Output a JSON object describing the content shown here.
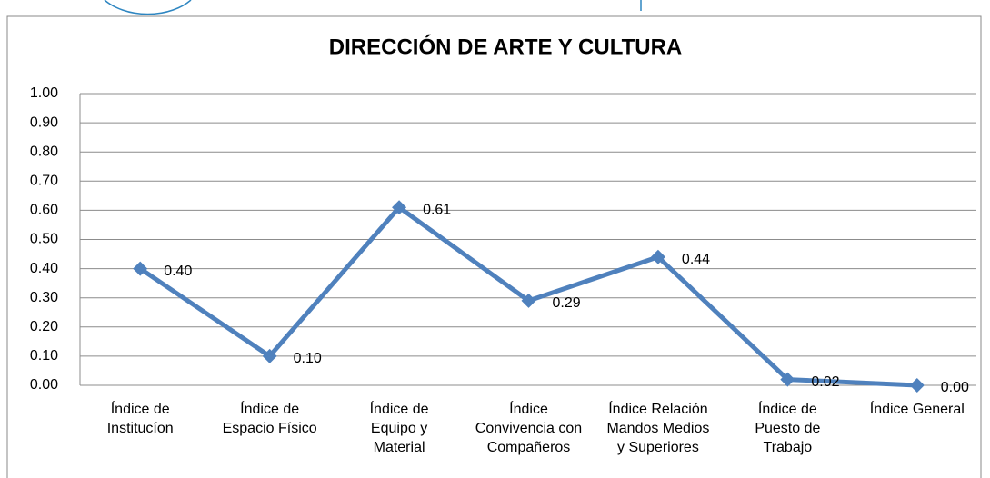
{
  "chart_data": {
    "type": "line",
    "title": "DIRECCIÓN DE ARTE Y CULTURA",
    "categories": [
      "Índice de\nInstitucíon",
      "Índice de\nEspacio Físico",
      "Índice de\nEquipo y\nMaterial",
      "Índice\nConvivencia con\nCompañeros",
      "Índice Relación\nMandos Medios\ny Superiores",
      "Índice de\nPuesto  de\nTrabajo",
      "Índice General"
    ],
    "values": [
      0.4,
      0.1,
      0.61,
      0.29,
      0.44,
      0.02,
      0.0
    ],
    "value_labels": [
      "0.40",
      "0.10",
      "0.61",
      "0.29",
      "0.44",
      "0.02",
      "0.00"
    ],
    "color": "#4f81bd",
    "ylim": [
      0,
      1
    ],
    "yticks": [
      {
        "value": 0,
        "label": "0.00"
      },
      {
        "value": 0.1,
        "label": "0.10"
      },
      {
        "value": 0.2,
        "label": "0.20"
      },
      {
        "value": 0.3,
        "label": "0.30"
      },
      {
        "value": 0.4,
        "label": "0.40"
      },
      {
        "value": 0.5,
        "label": "0.50"
      },
      {
        "value": 0.6,
        "label": "0.60"
      },
      {
        "value": 0.7,
        "label": "0.70"
      },
      {
        "value": 0.8,
        "label": "0.80"
      },
      {
        "value": 0.9,
        "label": "0.90"
      },
      {
        "value": 1,
        "label": "1.00"
      }
    ],
    "grid": true
  }
}
